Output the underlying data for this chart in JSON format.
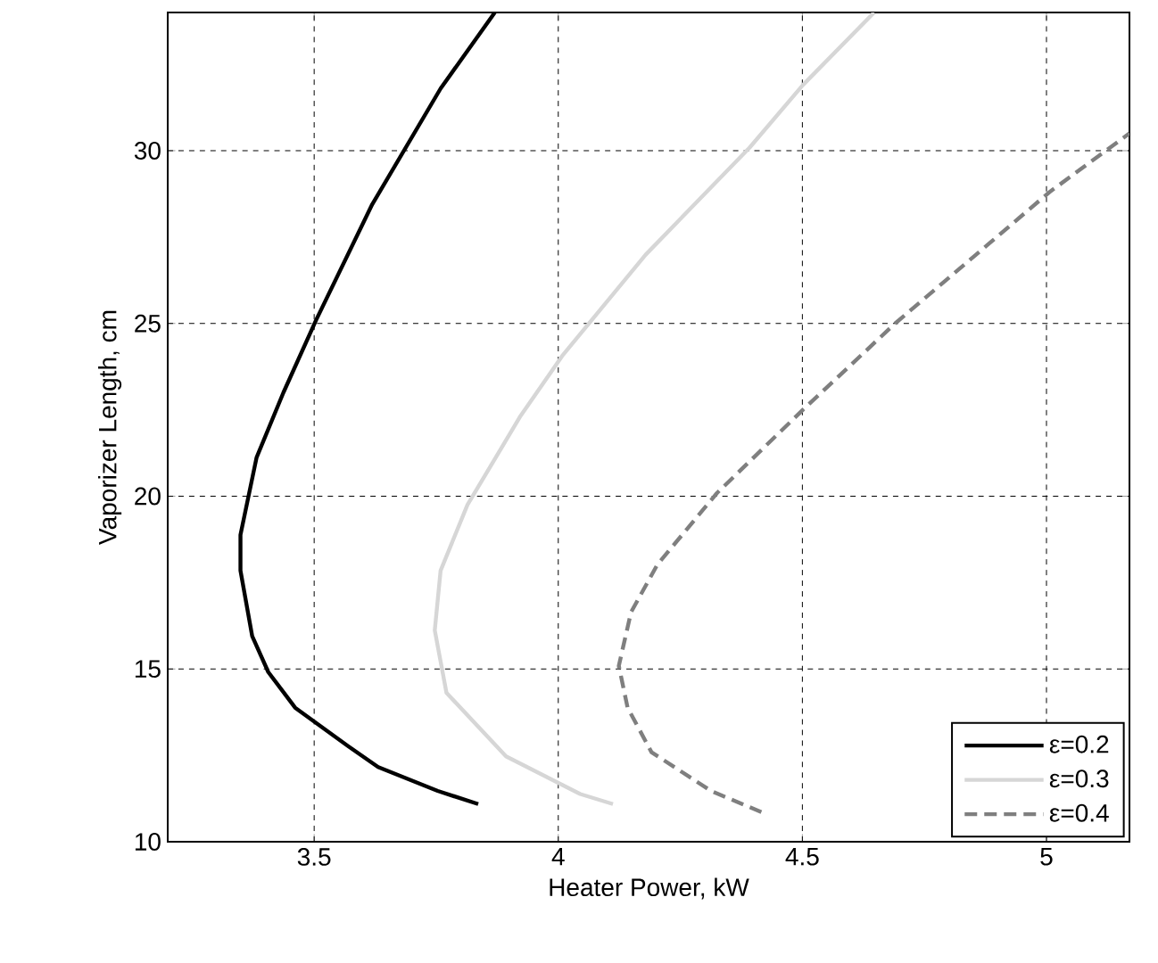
{
  "chart_data": {
    "type": "line",
    "xlabel": "Heater Power, kW",
    "ylabel": "Vaporizer Length, cm",
    "xlim": [
      3.2,
      5.17
    ],
    "ylim": [
      10,
      34
    ],
    "xticks": [
      3.5,
      4,
      4.5,
      5
    ],
    "yticks": [
      10,
      15,
      20,
      25,
      30
    ],
    "grid": true,
    "legend": "bottom right",
    "marker": "none",
    "series": [
      {
        "name": "ε=0.2",
        "color": "#000000",
        "line_style": "solid",
        "x": [
          3.836,
          3.753,
          3.631,
          3.57,
          3.461,
          3.406,
          3.373,
          3.349,
          3.349,
          3.382,
          3.437,
          3.504,
          3.619,
          3.759,
          3.87
        ],
        "values": [
          11.09,
          11.47,
          12.16,
          12.76,
          13.88,
          14.91,
          15.95,
          17.85,
          18.88,
          21.12,
          23.0,
          25.1,
          28.45,
          31.8,
          34.0
        ]
      },
      {
        "name": "ε=0.3",
        "color": "#d6d6d6",
        "line_style": "solid",
        "x": [
          4.112,
          4.045,
          3.893,
          3.771,
          3.747,
          3.759,
          3.814,
          3.923,
          4.008,
          4.179,
          4.392,
          4.501,
          4.647
        ],
        "values": [
          11.09,
          11.38,
          12.47,
          14.31,
          16.12,
          17.85,
          19.75,
          22.33,
          24.06,
          26.99,
          30.09,
          31.9,
          34.0
        ]
      },
      {
        "name": "ε=0.4",
        "color": "#7f7f7f",
        "line_style": "dashed",
        "x": [
          4.416,
          4.313,
          4.191,
          4.142,
          4.124,
          4.149,
          4.203,
          4.325,
          4.501,
          4.69,
          4.884,
          5.006,
          5.17
        ],
        "values": [
          10.86,
          11.47,
          12.59,
          13.88,
          15.09,
          16.64,
          18.02,
          20.09,
          22.5,
          25.0,
          27.33,
          28.8,
          30.5
        ]
      }
    ]
  }
}
